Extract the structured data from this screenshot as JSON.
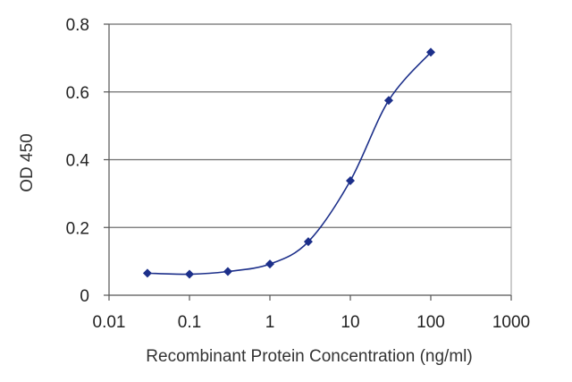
{
  "chart_data": {
    "type": "scatter",
    "title": "",
    "xlabel": "Recombinant Protein Concentration (ng/ml)",
    "ylabel": "OD 450",
    "xscale": "log",
    "xlim": [
      0.01,
      1000
    ],
    "ylim": [
      0,
      0.8
    ],
    "x_ticks": [
      "0.01",
      "0.1",
      "1",
      "10",
      "100",
      "1000"
    ],
    "y_ticks": [
      "0",
      "0.2",
      "0.4",
      "0.6",
      "0.8"
    ],
    "grid": "horizontal",
    "legend": "none",
    "series": [
      {
        "x": [
          0.03,
          0.1,
          0.3,
          1,
          3,
          10,
          30,
          100
        ],
        "y": [
          0.065,
          0.062,
          0.07,
          0.092,
          0.158,
          0.338,
          0.575,
          0.717
        ],
        "marker": "diamond",
        "line": "smooth curve"
      }
    ],
    "colors": {
      "series": "#1c2f8a",
      "grid": "#6e6e6e",
      "axis": "#555555"
    }
  }
}
